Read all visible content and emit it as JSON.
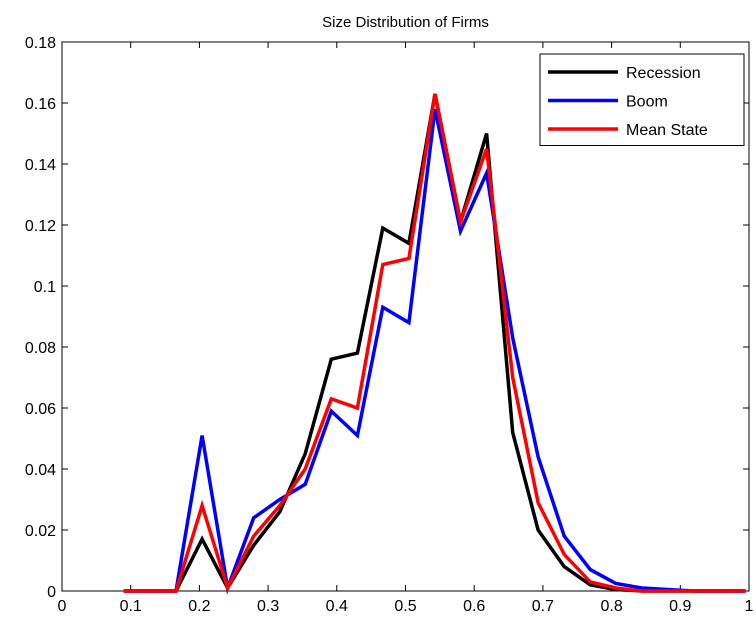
{
  "chart_data": {
    "type": "line",
    "title": "Size Distribution of Firms",
    "xlabel": "",
    "ylabel": "",
    "xlim": [
      0,
      1
    ],
    "ylim": [
      0,
      0.18
    ],
    "xticks": [
      0,
      0.1,
      0.2,
      0.3,
      0.4,
      0.5,
      0.6,
      0.7,
      0.8,
      0.9,
      1
    ],
    "xtick_labels": [
      "0",
      "0.1",
      "0.2",
      "0.3",
      "0.4",
      "0.5",
      "0.6",
      "0.7",
      "0.8",
      "0.9",
      "1"
    ],
    "yticks": [
      0,
      0.02,
      0.04,
      0.06,
      0.08,
      0.1,
      0.12,
      0.14,
      0.16,
      0.18
    ],
    "ytick_labels": [
      "0",
      "0.02",
      "0.04",
      "0.06",
      "0.08",
      "0.1",
      "0.12",
      "0.14",
      "0.16",
      "0.18"
    ],
    "grid": false,
    "legend_position": "top-right",
    "x": [
      0.09,
      0.128,
      0.166,
      0.204,
      0.241,
      0.279,
      0.317,
      0.354,
      0.392,
      0.43,
      0.467,
      0.505,
      0.543,
      0.58,
      0.618,
      0.656,
      0.693,
      0.731,
      0.769,
      0.806,
      0.844,
      0.882,
      0.92,
      0.957,
      0.995
    ],
    "series": [
      {
        "name": "Recession",
        "color": "#000000",
        "values": [
          0.0,
          0.0,
          0.0,
          0.017,
          0.001,
          0.015,
          0.026,
          0.045,
          0.076,
          0.078,
          0.119,
          0.114,
          0.163,
          0.121,
          0.15,
          0.052,
          0.02,
          0.008,
          0.002,
          0.0005,
          0.0,
          0.0,
          0.0,
          0.0,
          0.0
        ]
      },
      {
        "name": "Boom",
        "color": "#0000ff",
        "values": [
          0.0,
          0.0,
          0.0,
          0.051,
          0.001,
          0.024,
          0.03,
          0.035,
          0.059,
          0.051,
          0.093,
          0.088,
          0.158,
          0.118,
          0.137,
          0.083,
          0.044,
          0.018,
          0.007,
          0.0025,
          0.001,
          0.0005,
          0.0,
          0.0,
          0.0
        ]
      },
      {
        "name": "Mean State",
        "color": "#ff0000",
        "values": [
          0.0,
          0.0,
          0.0,
          0.028,
          0.001,
          0.018,
          0.028,
          0.04,
          0.063,
          0.06,
          0.107,
          0.109,
          0.163,
          0.121,
          0.145,
          0.07,
          0.029,
          0.012,
          0.003,
          0.001,
          0.0,
          0.0,
          0.0,
          0.0,
          0.0
        ]
      }
    ]
  }
}
